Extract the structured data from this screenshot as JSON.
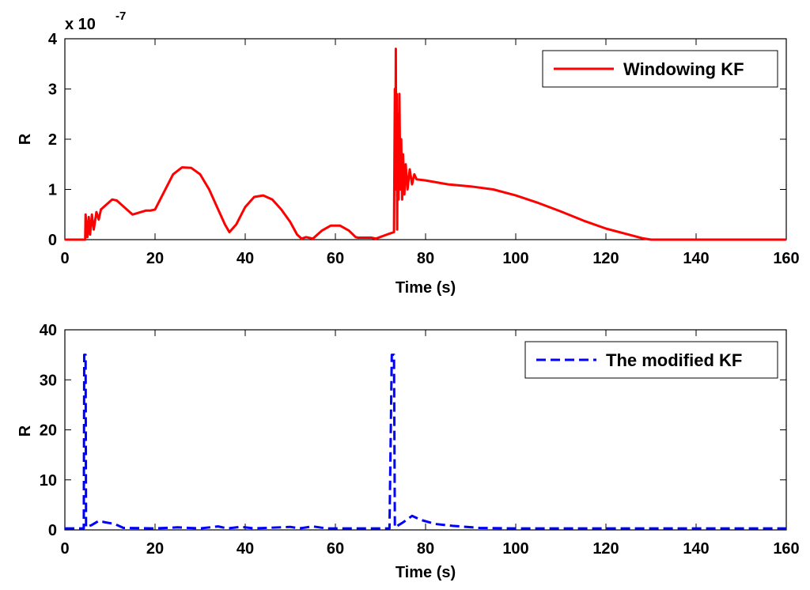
{
  "chart_data": [
    {
      "type": "line",
      "xlabel": "Time (s)",
      "ylabel": "R",
      "xlim": [
        0,
        160
      ],
      "ylim": [
        0,
        4
      ],
      "y_scale_label": "x 10",
      "y_scale_exponent": "-7",
      "xticks": [
        "0",
        "20",
        "40",
        "60",
        "80",
        "100",
        "120",
        "140",
        "160"
      ],
      "yticks": [
        "0",
        "1",
        "2",
        "3",
        "4"
      ],
      "legend_position": "top-right",
      "series": [
        {
          "name": "Windowing KF",
          "color": "#ff0000",
          "style": "solid",
          "points": [
            [
              0,
              0
            ],
            [
              4.5,
              0
            ],
            [
              4.6,
              0.5
            ],
            [
              5.0,
              0.05
            ],
            [
              5.3,
              0.45
            ],
            [
              5.6,
              0.1
            ],
            [
              6,
              0.5
            ],
            [
              6.4,
              0.2
            ],
            [
              7,
              0.55
            ],
            [
              7.5,
              0.4
            ],
            [
              8,
              0.6
            ],
            [
              10.5,
              0.8
            ],
            [
              11.5,
              0.78
            ],
            [
              15,
              0.5
            ],
            [
              18,
              0.58
            ],
            [
              19,
              0.58
            ],
            [
              20,
              0.6
            ],
            [
              22,
              0.95
            ],
            [
              24,
              1.3
            ],
            [
              26,
              1.44
            ],
            [
              28,
              1.43
            ],
            [
              30,
              1.3
            ],
            [
              32,
              1.0
            ],
            [
              34,
              0.6
            ],
            [
              35.5,
              0.3
            ],
            [
              36.5,
              0.15
            ],
            [
              38,
              0.3
            ],
            [
              40,
              0.65
            ],
            [
              42,
              0.85
            ],
            [
              44,
              0.88
            ],
            [
              46,
              0.8
            ],
            [
              48,
              0.6
            ],
            [
              50,
              0.35
            ],
            [
              51.5,
              0.1
            ],
            [
              52.5,
              0.02
            ],
            [
              53.5,
              0.05
            ],
            [
              55,
              0.02
            ],
            [
              57,
              0.18
            ],
            [
              59,
              0.28
            ],
            [
              61,
              0.28
            ],
            [
              63,
              0.18
            ],
            [
              64.5,
              0.05
            ],
            [
              65,
              0.04
            ],
            [
              68,
              0.04
            ],
            [
              69,
              0.02
            ],
            [
              72,
              0.12
            ],
            [
              73,
              0.15
            ],
            [
              73.2,
              3.0
            ],
            [
              73.3,
              1.0
            ],
            [
              73.4,
              3.8
            ],
            [
              73.5,
              1.2
            ],
            [
              73.6,
              2.9
            ],
            [
              73.7,
              0.2
            ],
            [
              73.8,
              2.5
            ],
            [
              74.0,
              0.8
            ],
            [
              74.2,
              2.9
            ],
            [
              74.4,
              1.0
            ],
            [
              74.6,
              2.0
            ],
            [
              74.8,
              0.8
            ],
            [
              75.0,
              1.7
            ],
            [
              75.3,
              0.9
            ],
            [
              75.6,
              1.5
            ],
            [
              76,
              1.0
            ],
            [
              76.5,
              1.4
            ],
            [
              77,
              1.1
            ],
            [
              77.5,
              1.3
            ],
            [
              78,
              1.2
            ],
            [
              80,
              1.18
            ],
            [
              85,
              1.1
            ],
            [
              90,
              1.06
            ],
            [
              95,
              1.0
            ],
            [
              100,
              0.88
            ],
            [
              105,
              0.73
            ],
            [
              110,
              0.56
            ],
            [
              115,
              0.38
            ],
            [
              120,
              0.22
            ],
            [
              125,
              0.1
            ],
            [
              128,
              0.03
            ],
            [
              130,
              0.0
            ],
            [
              160,
              0.0
            ]
          ]
        }
      ]
    },
    {
      "type": "line",
      "xlabel": "Time (s)",
      "ylabel": "R",
      "xlim": [
        0,
        160
      ],
      "ylim": [
        0,
        40
      ],
      "xticks": [
        "0",
        "20",
        "40",
        "60",
        "80",
        "100",
        "120",
        "140",
        "160"
      ],
      "yticks": [
        "0",
        "10",
        "20",
        "30",
        "40"
      ],
      "legend_position": "top-right",
      "series": [
        {
          "name": "The modified KF",
          "color": "#0000ff",
          "style": "dashed",
          "points": [
            [
              0,
              0.3
            ],
            [
              4.2,
              0.3
            ],
            [
              4.3,
              35
            ],
            [
              4.6,
              35
            ],
            [
              4.7,
              0.5
            ],
            [
              6,
              1.0
            ],
            [
              7.5,
              1.8
            ],
            [
              9,
              1.5
            ],
            [
              11,
              1.2
            ],
            [
              13,
              0.4
            ],
            [
              20,
              0.3
            ],
            [
              25,
              0.5
            ],
            [
              30,
              0.3
            ],
            [
              34,
              0.7
            ],
            [
              36,
              0.3
            ],
            [
              39,
              0.6
            ],
            [
              42,
              0.3
            ],
            [
              50,
              0.6
            ],
            [
              52,
              0.3
            ],
            [
              55,
              0.7
            ],
            [
              58,
              0.3
            ],
            [
              72,
              0.3
            ],
            [
              72.5,
              35
            ],
            [
              73,
              35
            ],
            [
              73.2,
              0.5
            ],
            [
              75,
              1.5
            ],
            [
              77,
              2.8
            ],
            [
              79,
              2.0
            ],
            [
              82,
              1.2
            ],
            [
              86,
              0.8
            ],
            [
              92,
              0.4
            ],
            [
              100,
              0.3
            ],
            [
              160,
              0.3
            ]
          ]
        }
      ]
    }
  ]
}
